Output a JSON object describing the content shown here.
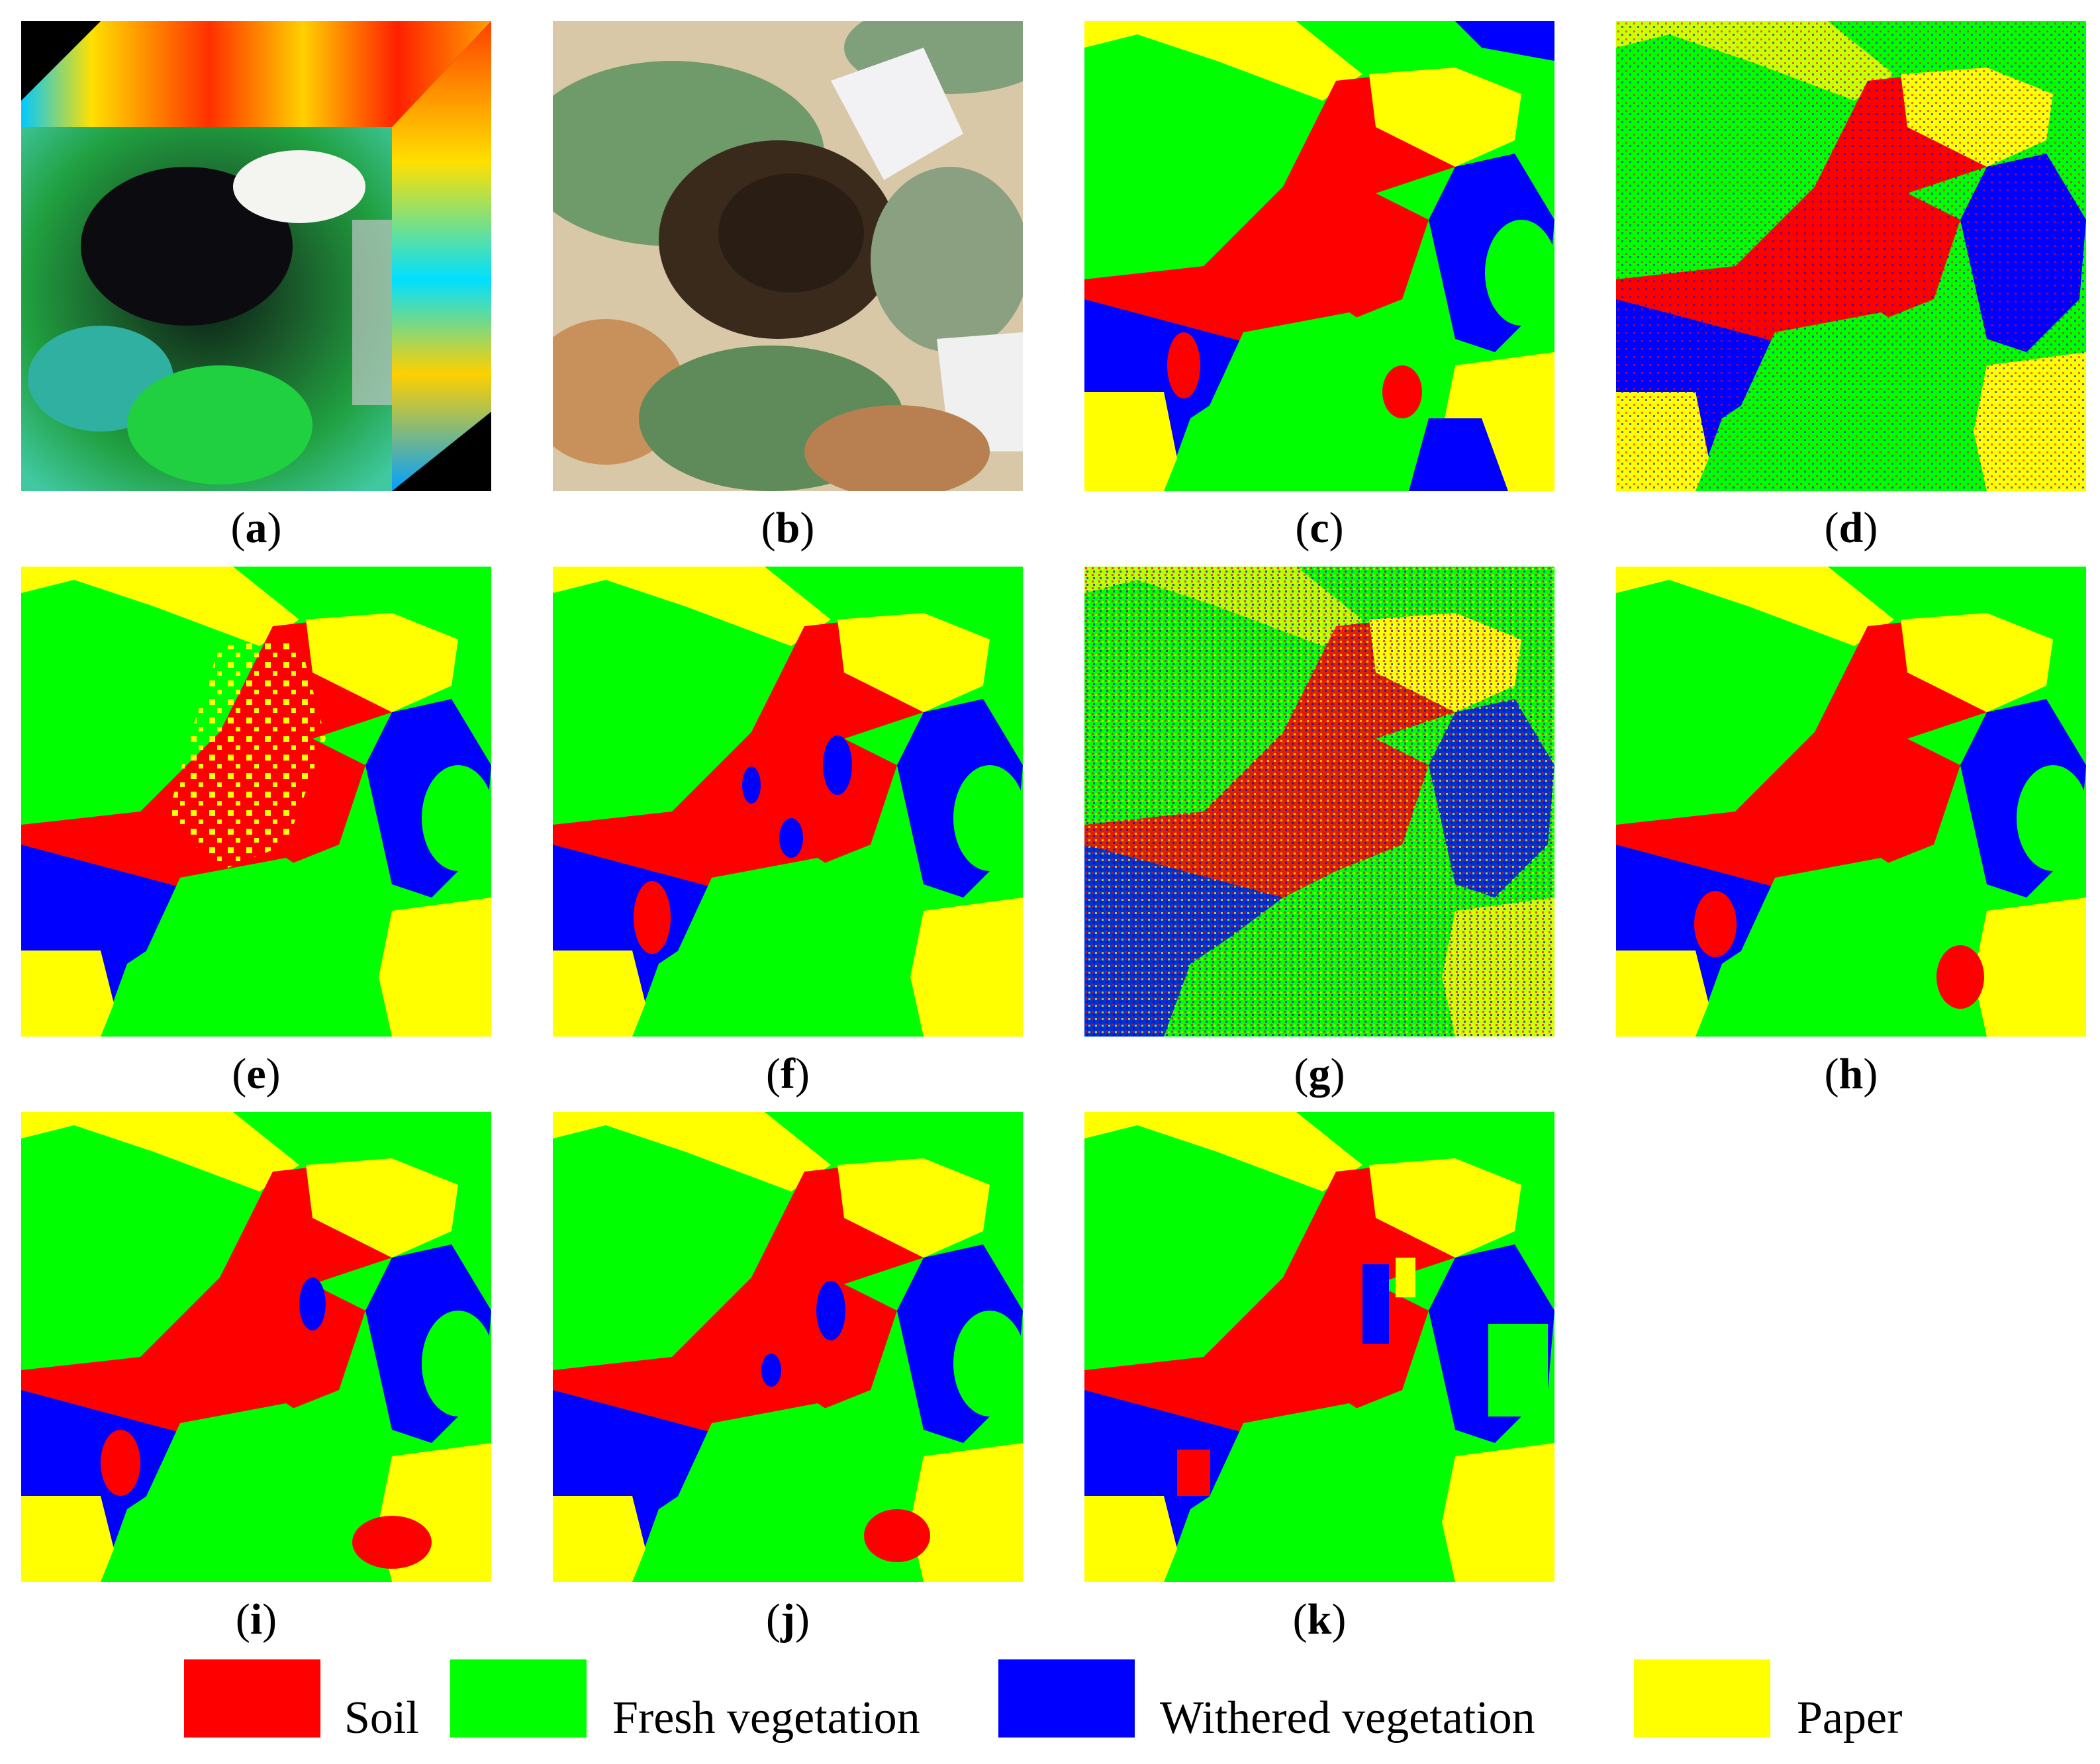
{
  "panels": [
    {
      "id": "a",
      "kind": "hypercube"
    },
    {
      "id": "b",
      "kind": "photo"
    },
    {
      "id": "c",
      "kind": "segmentation",
      "variant": "clean"
    },
    {
      "id": "d",
      "kind": "segmentation",
      "variant": "noisy"
    },
    {
      "id": "e",
      "kind": "segmentation",
      "variant": "yellow-speckle"
    },
    {
      "id": "f",
      "kind": "segmentation",
      "variant": "holes"
    },
    {
      "id": "g",
      "kind": "segmentation",
      "variant": "very-noisy"
    },
    {
      "id": "h",
      "kind": "segmentation",
      "variant": "smooth"
    },
    {
      "id": "i",
      "kind": "segmentation",
      "variant": "smooth"
    },
    {
      "id": "j",
      "kind": "segmentation",
      "variant": "smooth"
    },
    {
      "id": "k",
      "kind": "segmentation",
      "variant": "blocky"
    }
  ],
  "captions": {
    "a": "a",
    "b": "b",
    "c": "c",
    "d": "d",
    "e": "e",
    "f": "f",
    "g": "g",
    "h": "h",
    "i": "i",
    "j": "j",
    "k": "k"
  },
  "legend": [
    {
      "label": "Soil",
      "color": "#ff0000"
    },
    {
      "label": "Fresh vegetation",
      "color": "#00ff00"
    },
    {
      "label": "Withered vegetation",
      "color": "#0000ff"
    },
    {
      "label": "Paper",
      "color": "#ffff00"
    }
  ],
  "colors": {
    "soil": "#ff0000",
    "fresh": "#00ff00",
    "withered": "#0000ff",
    "paper": "#ffff00"
  }
}
